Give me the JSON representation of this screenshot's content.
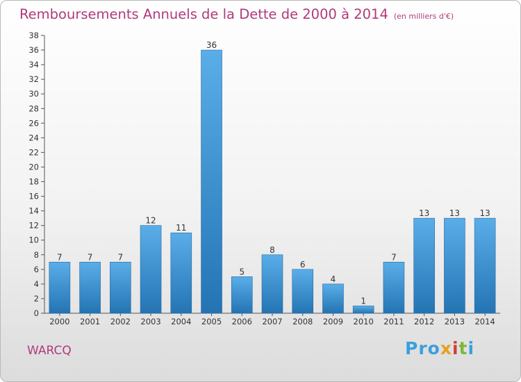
{
  "title": "Remboursements Annuels de la Dette de 2000 à 2014",
  "unit_note": "(en milliers d'€)",
  "commune": "WARCQ",
  "logo": {
    "letters": [
      "Pro",
      "x",
      "i",
      "t",
      "i"
    ]
  },
  "colors": {
    "title": "#b03a7a",
    "bar_light": "#5aaee8",
    "bar_dark": "#2474b4",
    "axis": "#555555",
    "grid": "#cccccc"
  },
  "chart_data": {
    "type": "bar",
    "title": "Remboursements Annuels de la Dette de 2000 à 2014",
    "xlabel": "",
    "ylabel": "",
    "categories": [
      "2000",
      "2001",
      "2002",
      "2003",
      "2004",
      "2005",
      "2006",
      "2007",
      "2008",
      "2009",
      "2010",
      "2011",
      "2012",
      "2013",
      "2014"
    ],
    "values": [
      7,
      7,
      7,
      12,
      11,
      36,
      5,
      8,
      6,
      4,
      1,
      7,
      13,
      13,
      13
    ],
    "ylim": [
      0,
      38
    ],
    "ytick_step": 2,
    "grid": false,
    "data_labels": true
  }
}
